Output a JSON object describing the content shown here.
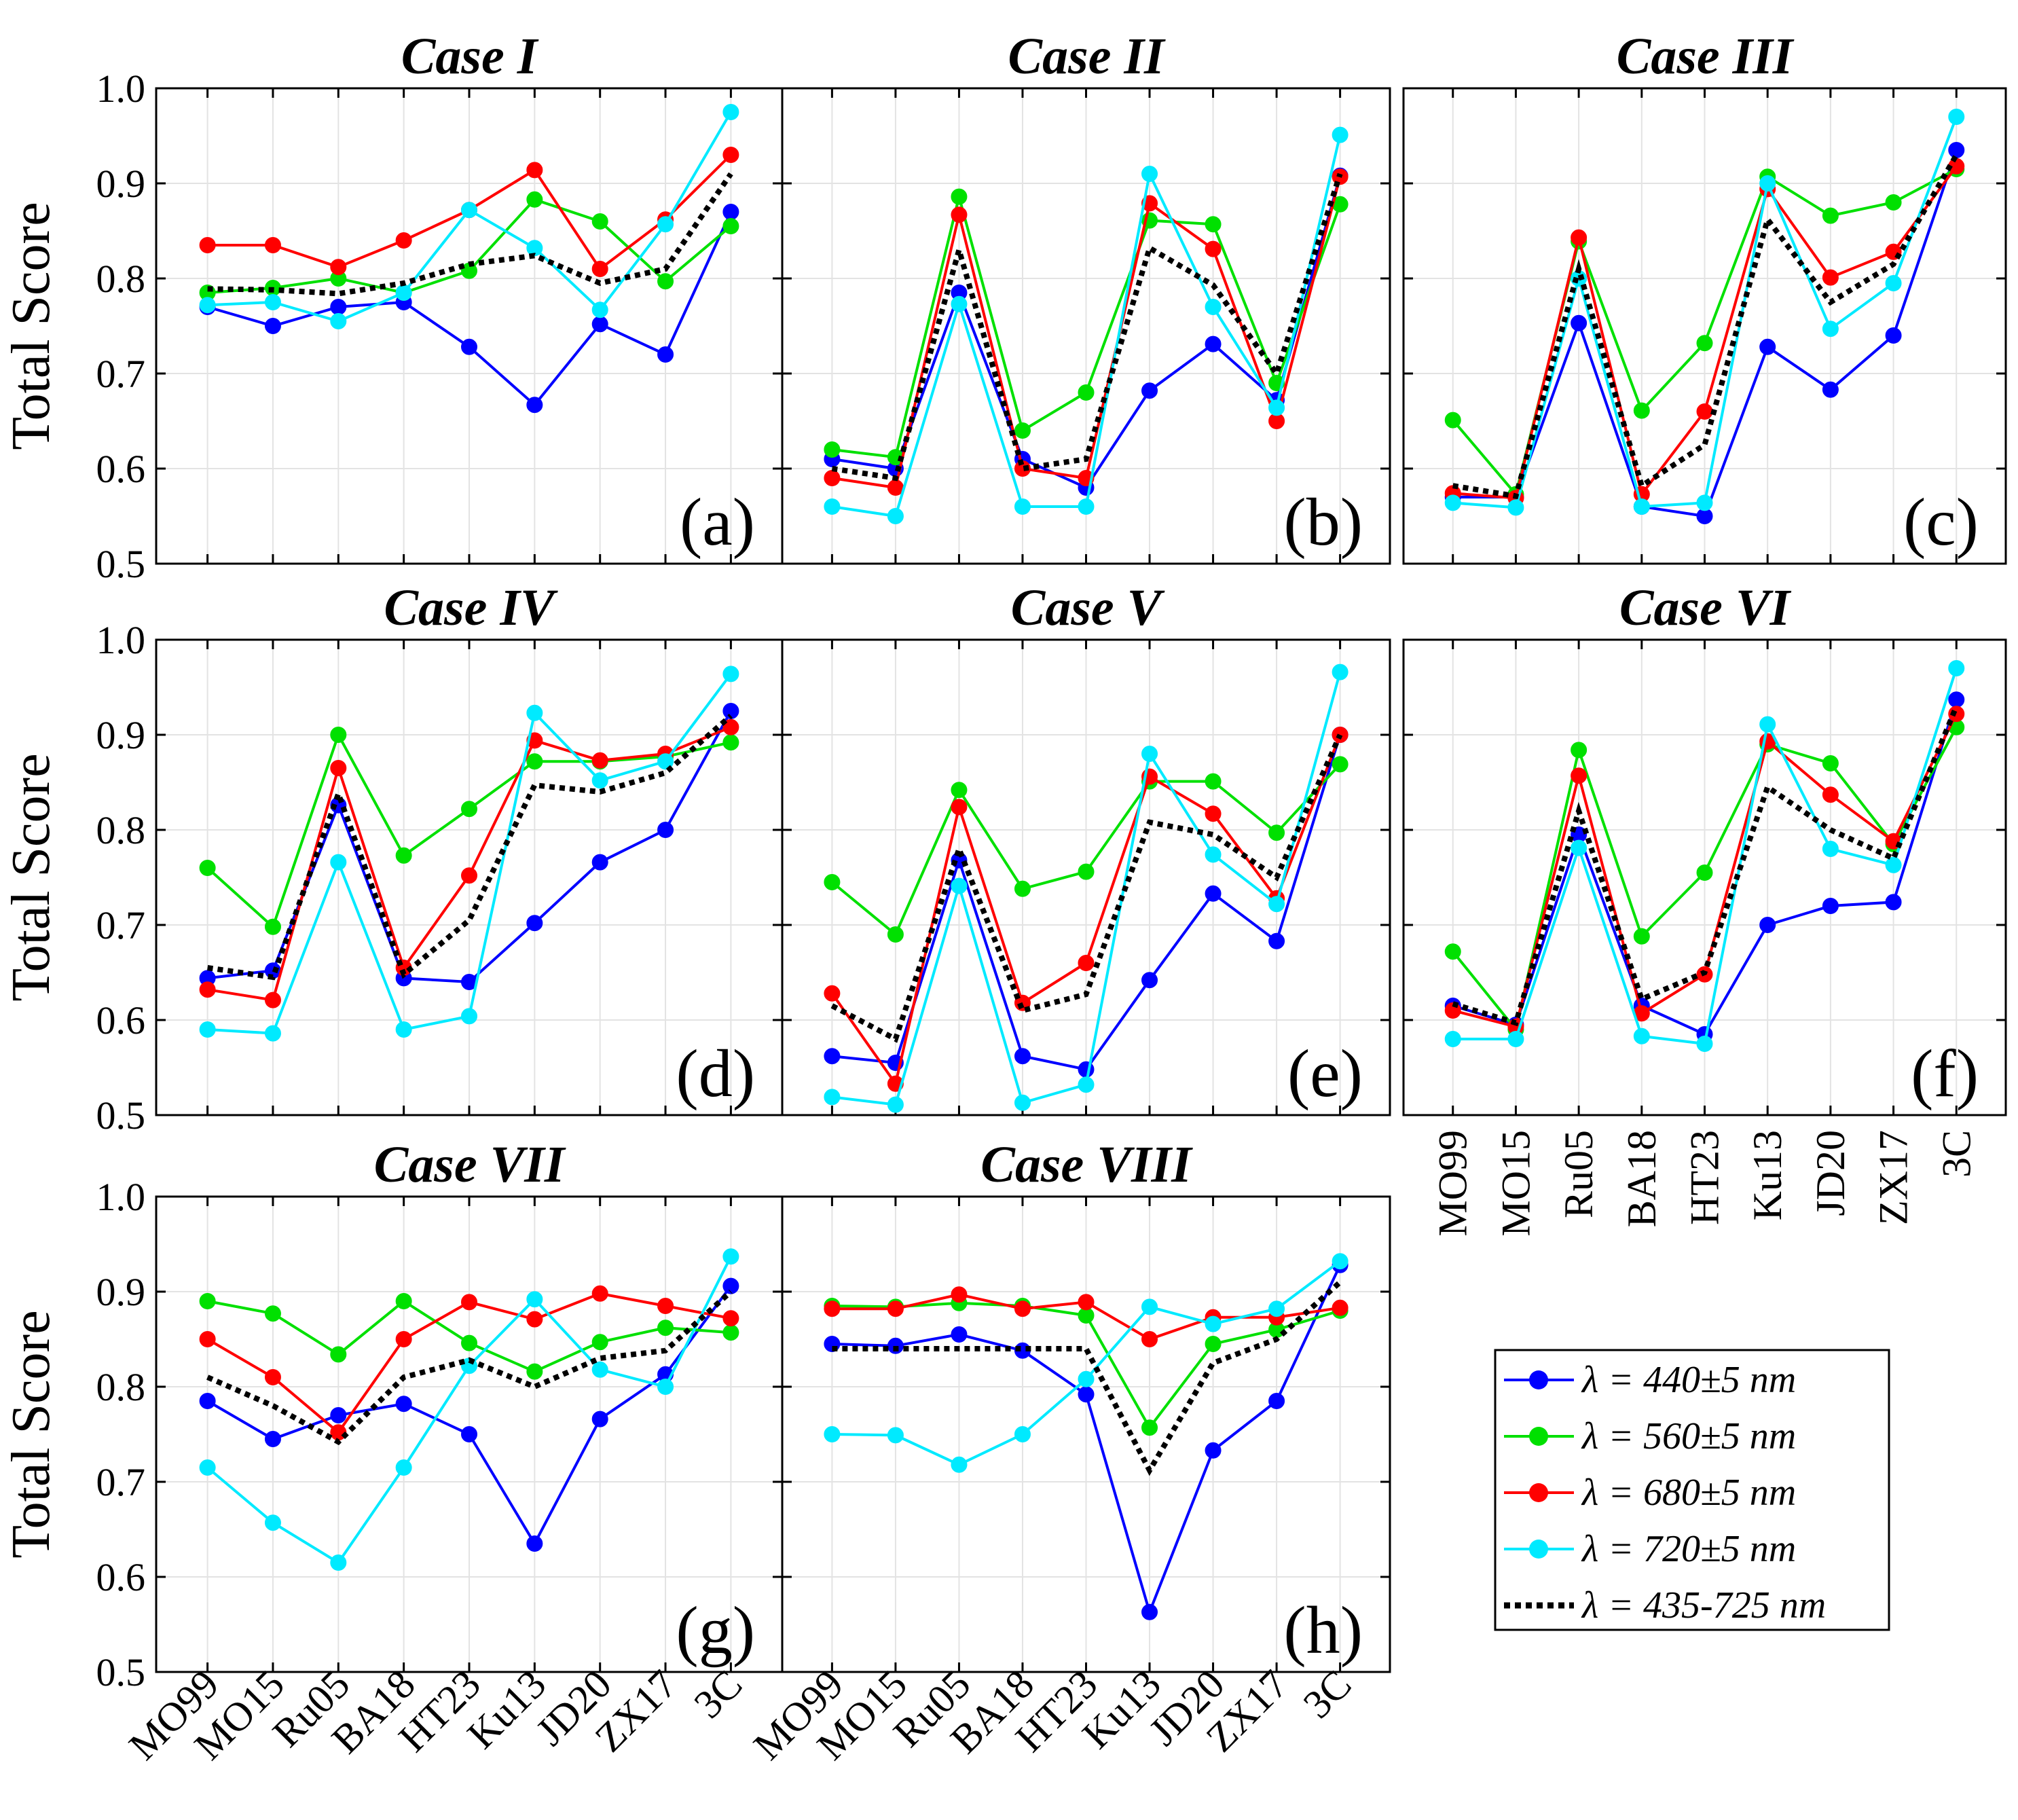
{
  "chart_data": {
    "type": "line",
    "ylabel": "Total Score",
    "ylim": [
      0.5,
      1.0
    ],
    "yticks": [
      "0.5",
      "0.6",
      "0.7",
      "0.8",
      "0.9",
      "1.0"
    ],
    "categories": [
      "MO99",
      "MO15",
      "Ru05",
      "BA18",
      "HT23",
      "Ku13",
      "JD20",
      "ZX17",
      "3C"
    ],
    "series_legend": [
      {
        "key": "b440",
        "name": "λ = 440±5 nm",
        "color": "#0000ff",
        "style": "solid-marker"
      },
      {
        "key": "g560",
        "name": "λ = 560±5 nm",
        "color": "#00e000",
        "style": "solid-marker"
      },
      {
        "key": "r680",
        "name": "λ = 680±5 nm",
        "color": "#ff0000",
        "style": "solid-marker"
      },
      {
        "key": "c720",
        "name": "λ = 720±5 nm",
        "color": "#00eaff",
        "style": "solid-marker"
      },
      {
        "key": "k435",
        "name": "λ = 435-725 nm",
        "color": "#000000",
        "style": "dotted"
      }
    ],
    "panels": [
      {
        "title": "Case I",
        "label": "(a)",
        "series": {
          "b440": [
            0.77,
            0.75,
            0.77,
            0.775,
            0.728,
            0.667,
            0.752,
            0.72,
            0.87
          ],
          "g560": [
            0.785,
            0.79,
            0.8,
            0.785,
            0.808,
            0.883,
            0.86,
            0.797,
            0.855
          ],
          "r680": [
            0.835,
            0.835,
            0.812,
            0.84,
            0.872,
            0.914,
            0.81,
            0.862,
            0.93
          ],
          "c720": [
            0.772,
            0.775,
            0.755,
            0.785,
            0.872,
            0.832,
            0.767,
            0.857,
            0.975
          ],
          "k435": [
            0.789,
            0.788,
            0.784,
            0.795,
            0.815,
            0.824,
            0.795,
            0.81,
            0.91
          ]
        }
      },
      {
        "title": "Case II",
        "label": "(b)",
        "series": {
          "b440": [
            0.61,
            0.6,
            0.785,
            0.61,
            0.58,
            0.682,
            0.731,
            0.672,
            0.908
          ],
          "g560": [
            0.62,
            0.612,
            0.886,
            0.64,
            0.68,
            0.861,
            0.857,
            0.69,
            0.878
          ],
          "r680": [
            0.59,
            0.58,
            0.867,
            0.6,
            0.59,
            0.879,
            0.831,
            0.65,
            0.907
          ],
          "c720": [
            0.56,
            0.55,
            0.773,
            0.56,
            0.56,
            0.91,
            0.77,
            0.664,
            0.951
          ],
          "k435": [
            0.6,
            0.59,
            0.83,
            0.6,
            0.61,
            0.832,
            0.793,
            0.7,
            0.91
          ]
        }
      },
      {
        "title": "Case III",
        "label": "(c)",
        "series": {
          "b440": [
            0.57,
            0.57,
            0.753,
            0.56,
            0.55,
            0.728,
            0.683,
            0.74,
            0.935
          ],
          "g560": [
            0.651,
            0.573,
            0.839,
            0.661,
            0.732,
            0.907,
            0.866,
            0.88,
            0.915
          ],
          "r680": [
            0.574,
            0.569,
            0.843,
            0.573,
            0.66,
            0.894,
            0.801,
            0.828,
            0.918
          ],
          "c720": [
            0.564,
            0.559,
            0.8,
            0.56,
            0.564,
            0.9,
            0.747,
            0.795,
            0.97
          ],
          "k435": [
            0.582,
            0.571,
            0.81,
            0.582,
            0.625,
            0.862,
            0.775,
            0.815,
            0.93
          ]
        }
      },
      {
        "title": "Case IV",
        "label": "(d)",
        "series": {
          "b440": [
            0.644,
            0.652,
            0.826,
            0.644,
            0.64,
            0.702,
            0.766,
            0.8,
            0.925
          ],
          "g560": [
            0.76,
            0.698,
            0.9,
            0.773,
            0.822,
            0.872,
            0.872,
            0.877,
            0.892
          ],
          "r680": [
            0.632,
            0.621,
            0.865,
            0.655,
            0.752,
            0.894,
            0.873,
            0.88,
            0.908
          ],
          "c720": [
            0.59,
            0.586,
            0.766,
            0.59,
            0.604,
            0.923,
            0.852,
            0.872,
            0.964
          ],
          "k435": [
            0.655,
            0.645,
            0.838,
            0.648,
            0.705,
            0.847,
            0.84,
            0.86,
            0.92
          ]
        }
      },
      {
        "title": "Case V",
        "label": "(e)",
        "series": {
          "b440": [
            0.562,
            0.555,
            0.768,
            0.562,
            0.548,
            0.642,
            0.733,
            0.683,
            0.9
          ],
          "g560": [
            0.745,
            0.69,
            0.842,
            0.738,
            0.756,
            0.851,
            0.851,
            0.797,
            0.869
          ],
          "r680": [
            0.628,
            0.533,
            0.824,
            0.618,
            0.66,
            0.856,
            0.817,
            0.728,
            0.9
          ],
          "c720": [
            0.519,
            0.511,
            0.741,
            0.513,
            0.532,
            0.88,
            0.774,
            0.722,
            0.966
          ],
          "k435": [
            0.615,
            0.58,
            0.78,
            0.61,
            0.627,
            0.808,
            0.795,
            0.75,
            0.9
          ]
        }
      },
      {
        "title": "Case VI",
        "label": "(f)",
        "series": {
          "b440": [
            0.615,
            0.595,
            0.795,
            0.615,
            0.585,
            0.7,
            0.72,
            0.724,
            0.937
          ],
          "g560": [
            0.672,
            0.59,
            0.884,
            0.688,
            0.755,
            0.89,
            0.87,
            0.785,
            0.908
          ],
          "r680": [
            0.61,
            0.593,
            0.857,
            0.607,
            0.648,
            0.893,
            0.837,
            0.788,
            0.922
          ],
          "c720": [
            0.58,
            0.58,
            0.781,
            0.583,
            0.575,
            0.911,
            0.78,
            0.763,
            0.97
          ],
          "k435": [
            0.617,
            0.597,
            0.82,
            0.622,
            0.65,
            0.845,
            0.8,
            0.77,
            0.93
          ]
        }
      },
      {
        "title": "Case VII",
        "label": "(g)",
        "series": {
          "b440": [
            0.785,
            0.745,
            0.77,
            0.782,
            0.75,
            0.635,
            0.766,
            0.813,
            0.906
          ],
          "g560": [
            0.89,
            0.877,
            0.834,
            0.89,
            0.846,
            0.816,
            0.847,
            0.862,
            0.857
          ],
          "r680": [
            0.85,
            0.81,
            0.752,
            0.85,
            0.889,
            0.871,
            0.898,
            0.885,
            0.872
          ],
          "c720": [
            0.715,
            0.657,
            0.615,
            0.715,
            0.822,
            0.892,
            0.818,
            0.8,
            0.937
          ],
          "k435": [
            0.81,
            0.78,
            0.742,
            0.81,
            0.828,
            0.8,
            0.83,
            0.838,
            0.9
          ]
        }
      },
      {
        "title": "Case VIII",
        "label": "(h)",
        "series": {
          "b440": [
            0.845,
            0.843,
            0.855,
            0.838,
            0.792,
            0.563,
            0.733,
            0.785,
            0.928
          ],
          "g560": [
            0.885,
            0.884,
            0.888,
            0.885,
            0.875,
            0.757,
            0.845,
            0.86,
            0.88
          ],
          "r680": [
            0.882,
            0.882,
            0.897,
            0.882,
            0.889,
            0.85,
            0.873,
            0.873,
            0.883
          ],
          "c720": [
            0.75,
            0.749,
            0.718,
            0.75,
            0.808,
            0.884,
            0.866,
            0.882,
            0.932
          ],
          "k435": [
            0.84,
            0.84,
            0.84,
            0.84,
            0.84,
            0.712,
            0.825,
            0.85,
            0.91
          ]
        }
      }
    ]
  }
}
